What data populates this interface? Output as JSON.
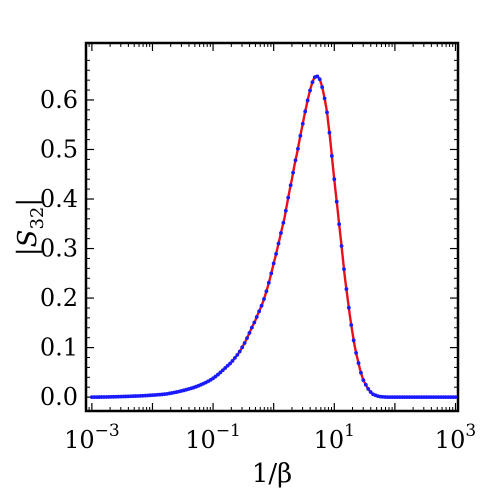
{
  "chart_data": {
    "type": "line",
    "xscale": "log",
    "xlabel": "1/β",
    "ylabel": "|S32|",
    "xlim": [
      0.0008,
      1100
    ],
    "ylim": [
      -0.028,
      0.715
    ],
    "x_ticks": [
      {
        "value": 0.001,
        "base": "10",
        "exp": "−3"
      },
      {
        "value": 0.1,
        "base": "10",
        "exp": "−1"
      },
      {
        "value": 10,
        "base": "10",
        "exp": "1"
      },
      {
        "value": 1000,
        "base": "10",
        "exp": "3"
      }
    ],
    "y_ticks": [
      {
        "value": 0,
        "label": "0.0"
      },
      {
        "value": 0.1,
        "label": "0.1"
      },
      {
        "value": 0.2,
        "label": "0.2"
      },
      {
        "value": 0.3,
        "label": "0.3"
      },
      {
        "value": 0.4,
        "label": "0.4"
      },
      {
        "value": 0.5,
        "label": "0.5"
      },
      {
        "value": 0.6,
        "label": "0.6"
      }
    ],
    "grid": false,
    "series": [
      {
        "style": "line",
        "color": "#e8101a",
        "x": [
          0.001,
          0.002,
          0.005,
          0.01,
          0.02,
          0.05,
          0.1,
          0.2,
          0.3,
          0.5,
          0.7,
          1,
          1.5,
          2,
          2.5,
          3,
          3.5,
          4,
          4.5,
          5,
          5.5,
          6,
          7,
          8,
          10,
          12,
          15,
          20,
          25,
          30,
          40,
          50,
          60,
          70,
          80,
          100,
          200,
          500,
          1000
        ],
        "y": [
          0.0,
          0.0005,
          0.002,
          0.004,
          0.008,
          0.02,
          0.038,
          0.07,
          0.1,
          0.155,
          0.2,
          0.27,
          0.36,
          0.44,
          0.5,
          0.55,
          0.59,
          0.62,
          0.64,
          0.648,
          0.645,
          0.635,
          0.6,
          0.55,
          0.44,
          0.35,
          0.24,
          0.13,
          0.07,
          0.035,
          0.01,
          0.003,
          0.0008,
          0.0002,
          0.0,
          0.0,
          0.0,
          0.0,
          0.0
        ]
      },
      {
        "style": "points",
        "color": "#1a1aff",
        "x": [
          0.001,
          0.002,
          0.005,
          0.01,
          0.02,
          0.05,
          0.1,
          0.2,
          0.3,
          0.5,
          0.7,
          1,
          1.5,
          2,
          2.5,
          3,
          3.5,
          4,
          4.5,
          5,
          5.5,
          6,
          7,
          8,
          10,
          12,
          15,
          20,
          25,
          30,
          40,
          50,
          60,
          70,
          80,
          100,
          200,
          500,
          1000
        ],
        "y": [
          0.0,
          0.0005,
          0.002,
          0.004,
          0.008,
          0.02,
          0.038,
          0.07,
          0.1,
          0.155,
          0.2,
          0.27,
          0.36,
          0.44,
          0.5,
          0.55,
          0.59,
          0.62,
          0.64,
          0.648,
          0.645,
          0.635,
          0.6,
          0.55,
          0.44,
          0.35,
          0.24,
          0.13,
          0.07,
          0.035,
          0.01,
          0.003,
          0.0008,
          0.0002,
          0.0,
          0.0,
          0.0,
          0.0,
          0.0
        ]
      }
    ]
  }
}
